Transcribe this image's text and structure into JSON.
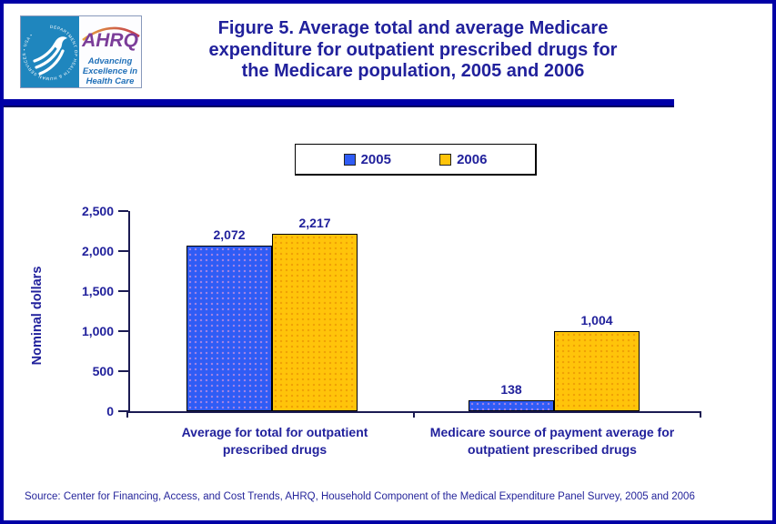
{
  "colors": {
    "navy_text": "#21219C",
    "border_navy": "#0000A6",
    "axis": "#1B1B52",
    "hhs_teal": "#1F86BE",
    "ahrq_purple": "#7B3D99",
    "ahrq_blue": "#2070B8"
  },
  "header": {
    "logo": {
      "hhs_circular_text": "DEPARTMENT OF HEALTH & HUMAN SERVICES • USA •",
      "ahrq_acronym": "AHRQ",
      "tagline_lines": [
        "Advancing",
        "Excellence in",
        "Health Care"
      ]
    },
    "title_lines": [
      "Figure 5. Average total and average Medicare",
      "expenditure for outpatient prescribed drugs for",
      "the Medicare population, 2005 and 2006"
    ]
  },
  "legend": {
    "items": [
      {
        "label": "2005",
        "color": "#2F5CF5"
      },
      {
        "label": "2006",
        "color": "#FFC40A"
      }
    ]
  },
  "chart_data": {
    "type": "bar",
    "title": "Figure 5. Average total and average Medicare expenditure for outpatient prescribed drugs for the Medicare population, 2005 and 2006",
    "xlabel": "",
    "ylabel": "Nominal dollars",
    "ylim": [
      0,
      2500
    ],
    "ytick_interval": 500,
    "ytick_labels_desc": [
      "2,500",
      "2,000",
      "1,500",
      "1,000",
      "500",
      "0"
    ],
    "grid": false,
    "legend_position": "top",
    "categories": [
      "Average for total for outpatient prescribed drugs",
      "Medicare source of payment average for outpatient prescribed drugs"
    ],
    "category_label_lines": [
      [
        "Average for total for outpatient",
        "prescribed drugs"
      ],
      [
        "Medicare source of payment average for",
        "outpatient prescribed drugs"
      ]
    ],
    "series": [
      {
        "name": "2005",
        "color": "#2F5CF5",
        "values": [
          2072,
          138
        ],
        "value_labels": [
          "2,072",
          "138"
        ]
      },
      {
        "name": "2006",
        "color": "#FFC40A",
        "values": [
          2217,
          1004
        ],
        "value_labels": [
          "2,217",
          "1,004"
        ]
      }
    ]
  },
  "footer": {
    "source": "Source: Center for Financing, Access, and Cost Trends, AHRQ, Household Component of the Medical Expenditure Panel Survey, 2005 and 2006"
  }
}
